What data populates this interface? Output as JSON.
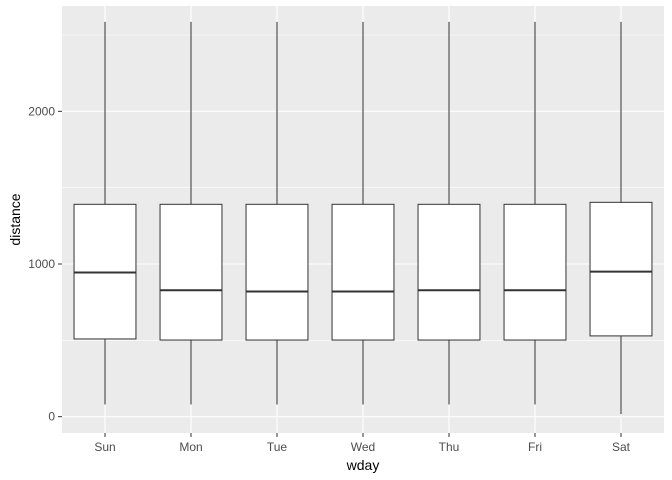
{
  "chart_data": {
    "type": "boxplot",
    "xlabel": "wday",
    "ylabel": "distance",
    "categories": [
      "Sun",
      "Mon",
      "Tue",
      "Wed",
      "Thu",
      "Fri",
      "Sat"
    ],
    "boxes": [
      {
        "min": 80,
        "q1": 509,
        "median": 944,
        "q3": 1391,
        "max": 2586
      },
      {
        "min": 80,
        "q1": 502,
        "median": 828,
        "q3": 1391,
        "max": 2586
      },
      {
        "min": 80,
        "q1": 502,
        "median": 820,
        "q3": 1391,
        "max": 2586
      },
      {
        "min": 80,
        "q1": 502,
        "median": 820,
        "q3": 1391,
        "max": 2586
      },
      {
        "min": 80,
        "q1": 502,
        "median": 828,
        "q3": 1391,
        "max": 2586
      },
      {
        "min": 80,
        "q1": 502,
        "median": 828,
        "q3": 1391,
        "max": 2586
      },
      {
        "min": 17,
        "q1": 529,
        "median": 950,
        "q3": 1404,
        "max": 2586
      }
    ],
    "yticks": [
      0,
      1000,
      2000
    ],
    "ytick_labels": [
      "0",
      "1000",
      "2000"
    ],
    "ylim": [
      -107,
      2690
    ],
    "grid": true,
    "colors": {
      "panel": "#ebebeb",
      "grid_major": "#ffffff",
      "box_fill": "#ffffff",
      "box_stroke": "#333333",
      "tick_label": "#4d4d4d"
    }
  }
}
